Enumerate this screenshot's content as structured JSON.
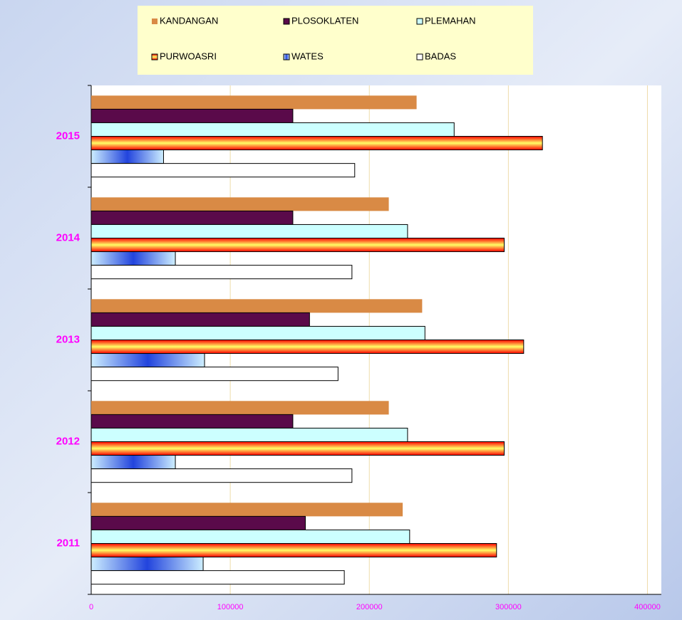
{
  "chart_data": {
    "type": "barh",
    "categories": [
      "2011",
      "2012",
      "2013",
      "2014",
      "2015"
    ],
    "series": [
      {
        "name": "KANDANGAN",
        "color": "#d98a45",
        "values": [
          224000,
          214000,
          238000,
          214000,
          234000
        ]
      },
      {
        "name": "PLOSOKLATEN",
        "color": "#5a0a4a",
        "values": [
          154000,
          145000,
          157000,
          145000,
          145000
        ]
      },
      {
        "name": "PLEMAHAN",
        "color": "#ccffff",
        "values": [
          229000,
          227500,
          240000,
          227500,
          261000
        ]
      },
      {
        "name": "PURWOASRI",
        "color": "#ff3300",
        "gradient": [
          "#ff0000",
          "#ffff66",
          "#ff0000"
        ],
        "values": [
          291500,
          297000,
          311000,
          297000,
          324500
        ]
      },
      {
        "name": "WATES",
        "color": "#aee0ff",
        "gradient": [
          "#cdeeff",
          "#2244dd",
          "#cdeeff"
        ],
        "values": [
          80500,
          60500,
          81500,
          60500,
          52000
        ]
      },
      {
        "name": "BADAS",
        "color": "#ffffff",
        "values": [
          182000,
          187500,
          177500,
          187500,
          189500
        ]
      }
    ],
    "xlim": [
      0,
      410000
    ],
    "xticks": [
      0,
      100000,
      200000,
      300000,
      400000
    ],
    "grid": true,
    "legend": "top"
  }
}
